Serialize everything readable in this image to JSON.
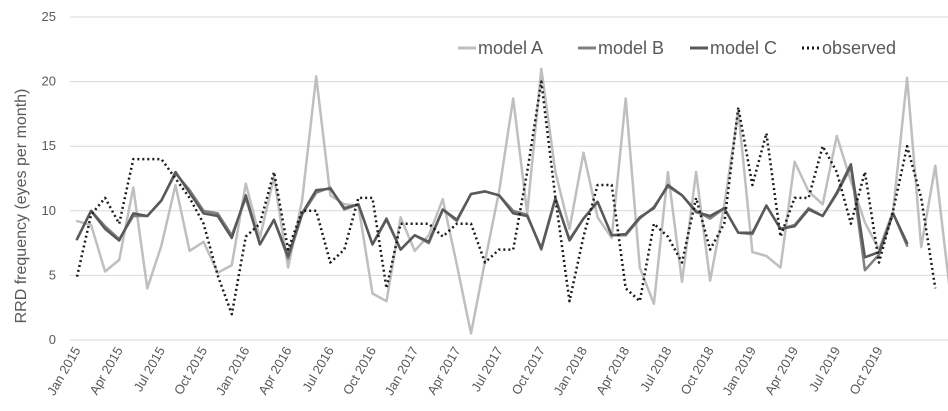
{
  "chart_data": {
    "type": "line",
    "ylabel": "RRD frequency (eyes per month)",
    "ylim": [
      0,
      25
    ],
    "yticks": [
      "0",
      "5",
      "10",
      "15",
      "20",
      "25"
    ],
    "grid": true,
    "legend_position": "top-right",
    "x_tick_labels": [
      "Jan 2015",
      "Apr 2015",
      "Jul 2015",
      "Oct 2015",
      "Jan 2016",
      "Apr 2016",
      "Jul 2016",
      "Oct 2016",
      "Jan 2017",
      "Apr 2017",
      "Jul 2017",
      "Oct 2017",
      "Jan 2018",
      "Apr 2018",
      "Jul 2018",
      "Oct 2018",
      "Jan 2019",
      "Apr 2019",
      "Jul 2019",
      "Oct 2019"
    ],
    "x_start": "2015-01",
    "series": [
      {
        "name": "model A",
        "color": "#bfbfbf",
        "dash": "solid",
        "width": 2.5,
        "values": [
          9.2,
          8.9,
          5.3,
          6.2,
          11.8,
          4.0,
          7.3,
          12.0,
          6.9,
          7.6,
          5.2,
          5.8,
          12.1,
          7.9,
          12.6,
          5.6,
          10.8,
          20.4,
          11.2,
          10.5,
          10.4,
          3.6,
          3.0,
          9.5,
          6.9,
          8.1,
          10.9,
          5.8,
          0.5,
          6.1,
          11.5,
          18.7,
          9.8,
          21.0,
          13.0,
          8.6,
          14.5,
          9.5,
          7.9,
          18.7,
          5.6,
          2.8,
          13.0,
          4.5,
          13.0,
          4.6,
          10.4,
          17.7,
          6.8,
          6.5,
          5.6,
          13.8,
          11.5,
          10.5,
          15.8,
          12.3,
          9.1,
          7.0,
          10.0,
          20.3,
          7.2,
          13.5,
          4.2
        ]
      },
      {
        "name": "model B",
        "color": "#808080",
        "dash": "solid",
        "width": 2.5,
        "values": [
          7.8,
          10.0,
          8.8,
          7.8,
          9.6,
          9.6,
          10.8,
          12.9,
          11.6,
          10.0,
          9.8,
          8.1,
          11.0,
          7.4,
          9.3,
          6.3,
          9.7,
          11.4,
          11.8,
          10.1,
          10.5,
          7.4,
          9.3,
          7.0,
          8.1,
          7.5,
          10.1,
          9.2,
          11.3,
          11.5,
          11.2,
          10.0,
          9.7,
          7.0,
          10.9,
          7.8,
          9.4,
          10.7,
          8.1,
          8.1,
          9.4,
          10.3,
          11.9,
          11.2,
          10.0,
          9.4,
          10.2,
          8.3,
          8.2,
          10.4,
          8.6,
          8.9,
          10.2,
          9.6,
          11.3,
          13.4,
          5.4,
          6.6,
          9.8,
          7.3
        ]
      },
      {
        "name": "model C",
        "color": "#595959",
        "dash": "solid",
        "width": 2.5,
        "values": [
          7.8,
          10.0,
          8.6,
          7.7,
          9.8,
          9.6,
          10.8,
          13.0,
          11.4,
          9.8,
          9.6,
          7.9,
          11.2,
          7.4,
          9.3,
          6.5,
          9.8,
          11.6,
          11.7,
          10.2,
          10.5,
          7.4,
          9.4,
          7.0,
          8.1,
          7.6,
          10.1,
          9.3,
          11.3,
          11.5,
          11.2,
          9.8,
          9.6,
          7.1,
          11.0,
          7.7,
          9.4,
          10.7,
          8.1,
          8.2,
          9.5,
          10.2,
          12.0,
          11.2,
          9.9,
          9.6,
          10.2,
          8.3,
          8.3,
          10.4,
          8.6,
          8.8,
          10.1,
          9.6,
          11.4,
          13.6,
          6.4,
          6.8,
          9.8,
          7.5
        ]
      },
      {
        "name": "observed",
        "color": "#1a1a1a",
        "dash": "dotted",
        "width": 2.5,
        "values": [
          4.9,
          9.7,
          11.0,
          9.0,
          14.0,
          14.0,
          14.0,
          12.5,
          11.0,
          9.0,
          5.0,
          2.0,
          8.0,
          9.0,
          13.0,
          7.0,
          10.0,
          10.0,
          6.0,
          7.0,
          11.0,
          11.0,
          4.0,
          9.0,
          9.0,
          9.0,
          8.0,
          9.0,
          9.0,
          6.0,
          7.0,
          7.0,
          13.0,
          20.0,
          11.0,
          3.0,
          8.0,
          12.0,
          12.0,
          4.0,
          3.0,
          9.0,
          8.0,
          6.0,
          11.0,
          7.0,
          9.0,
          18.0,
          12.0,
          16.0,
          8.0,
          11.0,
          11.0,
          15.0,
          13.0,
          9.0,
          13.0,
          6.0,
          10.0,
          15.0,
          11.0,
          4.0
        ]
      }
    ]
  }
}
